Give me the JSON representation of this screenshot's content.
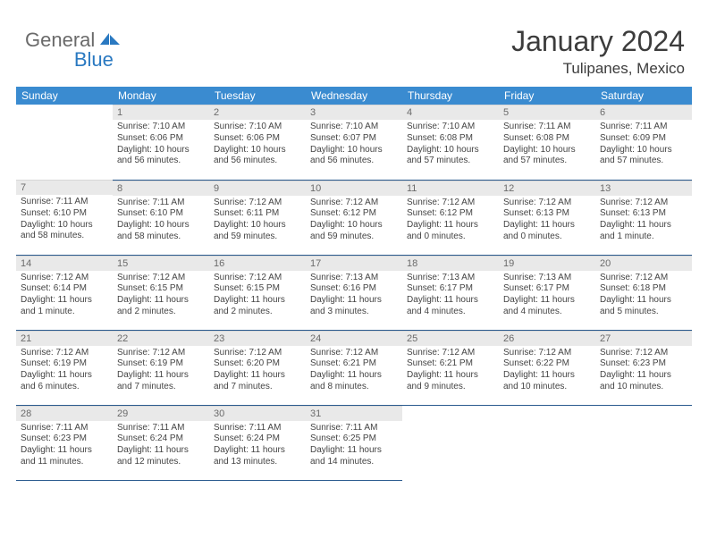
{
  "logo": {
    "word1": "General",
    "word2": "Blue"
  },
  "title": "January 2024",
  "location": "Tulipanes, Mexico",
  "colors": {
    "header_bg": "#3a8bd0",
    "header_text": "#ffffff",
    "daynum_bg": "#e9e9e9",
    "daynum_text": "#6b6b6b",
    "bottom_border": "#2a5a8e",
    "logo_gray": "#6a6a6a",
    "logo_blue": "#2a79c1"
  },
  "weekdays": [
    "Sunday",
    "Monday",
    "Tuesday",
    "Wednesday",
    "Thursday",
    "Friday",
    "Saturday"
  ],
  "weeks": [
    [
      null,
      {
        "n": "1",
        "rise": "Sunrise: 7:10 AM",
        "set": "Sunset: 6:06 PM",
        "d1": "Daylight: 10 hours",
        "d2": "and 56 minutes."
      },
      {
        "n": "2",
        "rise": "Sunrise: 7:10 AM",
        "set": "Sunset: 6:06 PM",
        "d1": "Daylight: 10 hours",
        "d2": "and 56 minutes."
      },
      {
        "n": "3",
        "rise": "Sunrise: 7:10 AM",
        "set": "Sunset: 6:07 PM",
        "d1": "Daylight: 10 hours",
        "d2": "and 56 minutes."
      },
      {
        "n": "4",
        "rise": "Sunrise: 7:10 AM",
        "set": "Sunset: 6:08 PM",
        "d1": "Daylight: 10 hours",
        "d2": "and 57 minutes."
      },
      {
        "n": "5",
        "rise": "Sunrise: 7:11 AM",
        "set": "Sunset: 6:08 PM",
        "d1": "Daylight: 10 hours",
        "d2": "and 57 minutes."
      },
      {
        "n": "6",
        "rise": "Sunrise: 7:11 AM",
        "set": "Sunset: 6:09 PM",
        "d1": "Daylight: 10 hours",
        "d2": "and 57 minutes."
      }
    ],
    [
      {
        "n": "7",
        "rise": "Sunrise: 7:11 AM",
        "set": "Sunset: 6:10 PM",
        "d1": "Daylight: 10 hours",
        "d2": "and 58 minutes."
      },
      {
        "n": "8",
        "rise": "Sunrise: 7:11 AM",
        "set": "Sunset: 6:10 PM",
        "d1": "Daylight: 10 hours",
        "d2": "and 58 minutes."
      },
      {
        "n": "9",
        "rise": "Sunrise: 7:12 AM",
        "set": "Sunset: 6:11 PM",
        "d1": "Daylight: 10 hours",
        "d2": "and 59 minutes."
      },
      {
        "n": "10",
        "rise": "Sunrise: 7:12 AM",
        "set": "Sunset: 6:12 PM",
        "d1": "Daylight: 10 hours",
        "d2": "and 59 minutes."
      },
      {
        "n": "11",
        "rise": "Sunrise: 7:12 AM",
        "set": "Sunset: 6:12 PM",
        "d1": "Daylight: 11 hours",
        "d2": "and 0 minutes."
      },
      {
        "n": "12",
        "rise": "Sunrise: 7:12 AM",
        "set": "Sunset: 6:13 PM",
        "d1": "Daylight: 11 hours",
        "d2": "and 0 minutes."
      },
      {
        "n": "13",
        "rise": "Sunrise: 7:12 AM",
        "set": "Sunset: 6:13 PM",
        "d1": "Daylight: 11 hours",
        "d2": "and 1 minute."
      }
    ],
    [
      {
        "n": "14",
        "rise": "Sunrise: 7:12 AM",
        "set": "Sunset: 6:14 PM",
        "d1": "Daylight: 11 hours",
        "d2": "and 1 minute."
      },
      {
        "n": "15",
        "rise": "Sunrise: 7:12 AM",
        "set": "Sunset: 6:15 PM",
        "d1": "Daylight: 11 hours",
        "d2": "and 2 minutes."
      },
      {
        "n": "16",
        "rise": "Sunrise: 7:12 AM",
        "set": "Sunset: 6:15 PM",
        "d1": "Daylight: 11 hours",
        "d2": "and 2 minutes."
      },
      {
        "n": "17",
        "rise": "Sunrise: 7:13 AM",
        "set": "Sunset: 6:16 PM",
        "d1": "Daylight: 11 hours",
        "d2": "and 3 minutes."
      },
      {
        "n": "18",
        "rise": "Sunrise: 7:13 AM",
        "set": "Sunset: 6:17 PM",
        "d1": "Daylight: 11 hours",
        "d2": "and 4 minutes."
      },
      {
        "n": "19",
        "rise": "Sunrise: 7:13 AM",
        "set": "Sunset: 6:17 PM",
        "d1": "Daylight: 11 hours",
        "d2": "and 4 minutes."
      },
      {
        "n": "20",
        "rise": "Sunrise: 7:12 AM",
        "set": "Sunset: 6:18 PM",
        "d1": "Daylight: 11 hours",
        "d2": "and 5 minutes."
      }
    ],
    [
      {
        "n": "21",
        "rise": "Sunrise: 7:12 AM",
        "set": "Sunset: 6:19 PM",
        "d1": "Daylight: 11 hours",
        "d2": "and 6 minutes."
      },
      {
        "n": "22",
        "rise": "Sunrise: 7:12 AM",
        "set": "Sunset: 6:19 PM",
        "d1": "Daylight: 11 hours",
        "d2": "and 7 minutes."
      },
      {
        "n": "23",
        "rise": "Sunrise: 7:12 AM",
        "set": "Sunset: 6:20 PM",
        "d1": "Daylight: 11 hours",
        "d2": "and 7 minutes."
      },
      {
        "n": "24",
        "rise": "Sunrise: 7:12 AM",
        "set": "Sunset: 6:21 PM",
        "d1": "Daylight: 11 hours",
        "d2": "and 8 minutes."
      },
      {
        "n": "25",
        "rise": "Sunrise: 7:12 AM",
        "set": "Sunset: 6:21 PM",
        "d1": "Daylight: 11 hours",
        "d2": "and 9 minutes."
      },
      {
        "n": "26",
        "rise": "Sunrise: 7:12 AM",
        "set": "Sunset: 6:22 PM",
        "d1": "Daylight: 11 hours",
        "d2": "and 10 minutes."
      },
      {
        "n": "27",
        "rise": "Sunrise: 7:12 AM",
        "set": "Sunset: 6:23 PM",
        "d1": "Daylight: 11 hours",
        "d2": "and 10 minutes."
      }
    ],
    [
      {
        "n": "28",
        "rise": "Sunrise: 7:11 AM",
        "set": "Sunset: 6:23 PM",
        "d1": "Daylight: 11 hours",
        "d2": "and 11 minutes."
      },
      {
        "n": "29",
        "rise": "Sunrise: 7:11 AM",
        "set": "Sunset: 6:24 PM",
        "d1": "Daylight: 11 hours",
        "d2": "and 12 minutes."
      },
      {
        "n": "30",
        "rise": "Sunrise: 7:11 AM",
        "set": "Sunset: 6:24 PM",
        "d1": "Daylight: 11 hours",
        "d2": "and 13 minutes."
      },
      {
        "n": "31",
        "rise": "Sunrise: 7:11 AM",
        "set": "Sunset: 6:25 PM",
        "d1": "Daylight: 11 hours",
        "d2": "and 14 minutes."
      },
      null,
      null,
      null
    ]
  ]
}
